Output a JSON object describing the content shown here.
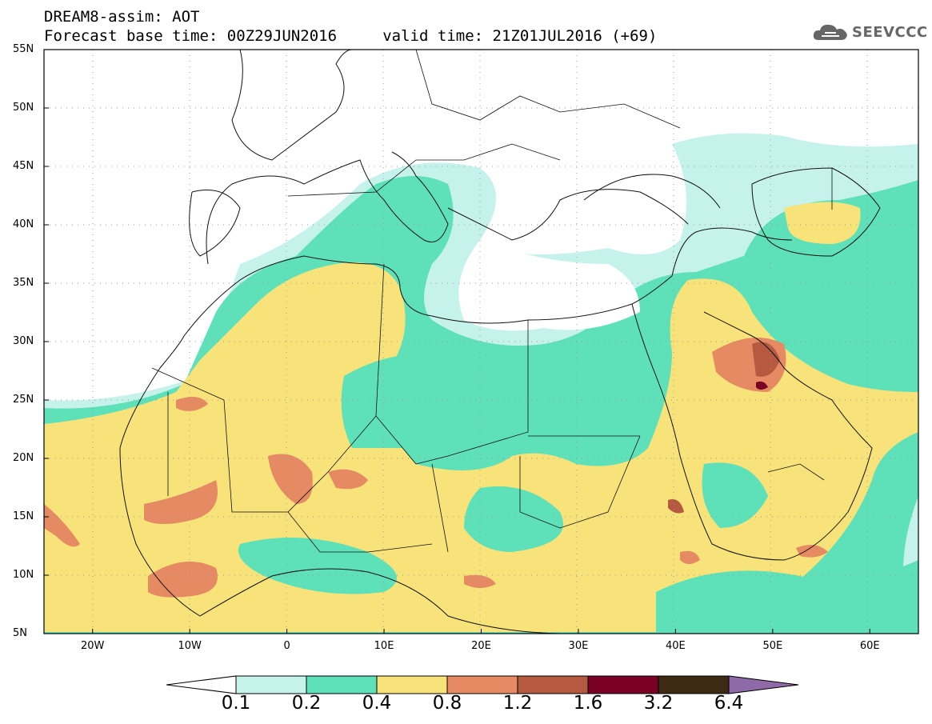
{
  "header": {
    "line1": "DREAM8-assim: AOT",
    "line2": "Forecast base time: 00Z29JUN2016     valid time: 21Z01JUL2016 (+69)"
  },
  "logo": {
    "text": "SEEVCCC",
    "icon": "cloud-icon"
  },
  "map": {
    "variable": "AOT",
    "lat_range": [
      5,
      55
    ],
    "lon_range": [
      -25,
      65
    ],
    "lat_ticks": [
      {
        "value": 55,
        "label": "55N"
      },
      {
        "value": 50,
        "label": "50N"
      },
      {
        "value": 45,
        "label": "45N"
      },
      {
        "value": 40,
        "label": "40N"
      },
      {
        "value": 35,
        "label": "35N"
      },
      {
        "value": 30,
        "label": "30N"
      },
      {
        "value": 25,
        "label": "25N"
      },
      {
        "value": 20,
        "label": "20N"
      },
      {
        "value": 15,
        "label": "15N"
      },
      {
        "value": 10,
        "label": "10N"
      },
      {
        "value": 5,
        "label": "5N"
      }
    ],
    "lon_ticks": [
      {
        "value": -20,
        "label": "20W"
      },
      {
        "value": -10,
        "label": "10W"
      },
      {
        "value": 0,
        "label": "0"
      },
      {
        "value": 10,
        "label": "10E"
      },
      {
        "value": 20,
        "label": "20E"
      },
      {
        "value": 30,
        "label": "30E"
      },
      {
        "value": 40,
        "label": "40E"
      },
      {
        "value": 50,
        "label": "50E"
      },
      {
        "value": 60,
        "label": "60E"
      }
    ],
    "grid": "dotted"
  },
  "colorbar": {
    "labels": [
      "0.1",
      "0.2",
      "0.4",
      "0.8",
      "1.2",
      "1.6",
      "3.2",
      "6.4"
    ],
    "colors": [
      "#ffffff",
      "#c6f2ec",
      "#5ee0b8",
      "#f7e37a",
      "#e58a62",
      "#b55a40",
      "#7a0024",
      "#3e2a14",
      "#8e6aa8"
    ]
  }
}
